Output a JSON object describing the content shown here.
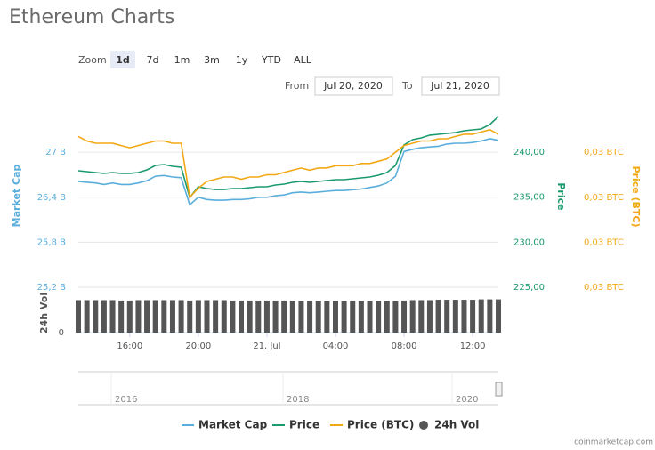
{
  "chart_data": {
    "type": "line",
    "title": "Ethereum Charts",
    "zoom": {
      "label": "Zoom",
      "buttons": [
        "1d",
        "7d",
        "1m",
        "3m",
        "1y",
        "YTD",
        "ALL"
      ],
      "selected": 0
    },
    "range": {
      "from_label": "From",
      "from": "Jul 20, 2020",
      "to_label": "To",
      "to": "Jul 21, 2020"
    },
    "x": [
      13,
      13.5,
      14,
      14.5,
      15,
      15.5,
      16,
      16.5,
      17,
      17.5,
      18,
      18.5,
      19,
      19.5,
      20,
      20.5,
      21,
      21.5,
      22,
      22.5,
      23,
      23.5,
      24,
      24.5,
      25,
      25.5,
      26,
      26.5,
      27,
      27.5,
      28,
      28.5,
      29,
      29.5,
      30,
      30.5,
      31,
      31.5,
      32,
      32.5,
      33,
      33.5,
      34,
      34.5,
      35,
      35.5,
      36,
      36.5,
      37,
      37.5
    ],
    "xlim": [
      13,
      37.5
    ],
    "xticks": [
      {
        "value": 16,
        "label": "16:00"
      },
      {
        "value": 20,
        "label": "20:00"
      },
      {
        "value": 24,
        "label": "21. Jul"
      },
      {
        "value": 28,
        "label": "04:00"
      },
      {
        "value": 32,
        "label": "08:00"
      },
      {
        "value": 36,
        "label": "12:00"
      }
    ],
    "ylabel": "Market Cap",
    "ylim": [
      25.2,
      27.63
    ],
    "yticks": [
      {
        "value": 27,
        "label": "27 B"
      },
      {
        "value": 26.4,
        "label": "26,4 B"
      },
      {
        "value": 25.8,
        "label": "25,8 B"
      },
      {
        "value": 25.2,
        "label": "25,2 B"
      }
    ],
    "y2label": "Price",
    "y2lim": [
      225,
      245.23
    ],
    "y2ticks": [
      {
        "value": 240,
        "label": "240,00"
      },
      {
        "value": 235,
        "label": "235,00"
      },
      {
        "value": 230,
        "label": "230,00"
      },
      {
        "value": 225,
        "label": "225,00"
      }
    ],
    "y3label": "Price (BTC)",
    "y3lim": [
      0.0252,
      0.02601
    ],
    "y3ticks": [
      {
        "value": 0.0258,
        "label": "0,03 BTC"
      },
      {
        "value": 0.0256,
        "label": "0,03 BTC"
      },
      {
        "value": 0.0254,
        "label": "0,03 BTC"
      },
      {
        "value": 0.0252,
        "label": "0,03 BTC"
      }
    ],
    "grid": true,
    "series": [
      {
        "name": "Market Cap",
        "color": "#5aaedb",
        "axis": "y",
        "values": [
          26.61,
          26.6,
          26.59,
          26.57,
          26.59,
          26.57,
          26.57,
          26.59,
          26.62,
          26.68,
          26.69,
          26.67,
          26.66,
          26.3,
          26.4,
          26.37,
          26.36,
          26.36,
          26.37,
          26.37,
          26.38,
          26.4,
          26.4,
          26.42,
          26.43,
          26.46,
          26.47,
          26.46,
          26.47,
          26.48,
          26.49,
          26.49,
          26.5,
          26.51,
          26.53,
          26.55,
          26.59,
          26.68,
          27.01,
          27.04,
          27.06,
          27.07,
          27.08,
          27.11,
          27.12,
          27.12,
          27.13,
          27.15,
          27.18,
          27.16
        ]
      },
      {
        "name": "Price",
        "color": "#1b9a6c",
        "axis": "y2",
        "values": [
          237.93,
          237.83,
          237.73,
          237.63,
          237.73,
          237.63,
          237.63,
          237.73,
          238.03,
          238.52,
          238.62,
          238.42,
          238.32,
          234.97,
          236.15,
          235.95,
          235.85,
          235.85,
          235.95,
          235.95,
          236.05,
          236.15,
          236.15,
          236.35,
          236.45,
          236.64,
          236.74,
          236.64,
          236.74,
          236.84,
          236.94,
          236.94,
          237.04,
          237.14,
          237.24,
          237.43,
          237.73,
          238.52,
          240.8,
          241.38,
          241.58,
          241.88,
          241.97,
          242.07,
          242.17,
          242.37,
          242.47,
          242.57,
          243.06,
          243.95
        ]
      },
      {
        "name": "Price (BTC)",
        "color": "#f2a813",
        "axis": "y3",
        "values": [
          0.02587,
          0.02585,
          0.02584,
          0.02584,
          0.02584,
          0.02583,
          0.02582,
          0.02583,
          0.02584,
          0.02585,
          0.02585,
          0.02584,
          0.02584,
          0.0256,
          0.02564,
          0.02567,
          0.02568,
          0.02569,
          0.02569,
          0.02568,
          0.02569,
          0.02569,
          0.0257,
          0.0257,
          0.02571,
          0.02572,
          0.02573,
          0.02572,
          0.02573,
          0.02573,
          0.02574,
          0.02574,
          0.02574,
          0.02575,
          0.02575,
          0.02576,
          0.02577,
          0.0258,
          0.02583,
          0.02584,
          0.02585,
          0.02585,
          0.02586,
          0.02586,
          0.02587,
          0.02588,
          0.02588,
          0.02589,
          0.0259,
          0.02588
        ]
      }
    ],
    "volume": {
      "name": "24h Vol",
      "ylabel": "24h Vol",
      "color": "#555555",
      "ylim": [
        0,
        10
      ],
      "yticks": [
        0
      ],
      "values": [
        8.3,
        8.3,
        8.3,
        8.3,
        8.3,
        8.2,
        8.2,
        8.3,
        8.3,
        8.3,
        8.3,
        8.3,
        8.3,
        8.2,
        8.3,
        8.3,
        8.3,
        8.3,
        8.2,
        8.2,
        8.2,
        8.2,
        8.2,
        8.2,
        8.2,
        8.1,
        8.1,
        8.1,
        8.1,
        8.1,
        8.1,
        8.1,
        8.1,
        8.1,
        8.1,
        8.1,
        8.1,
        8.1,
        8.2,
        8.3,
        8.3,
        8.3,
        8.4,
        8.4,
        8.4,
        8.4,
        8.4,
        8.5,
        8.5,
        8.5
      ]
    },
    "navigator": {
      "labels": [
        "2016",
        "2018",
        "2020"
      ]
    },
    "credit": "coinmarketcap.com"
  }
}
